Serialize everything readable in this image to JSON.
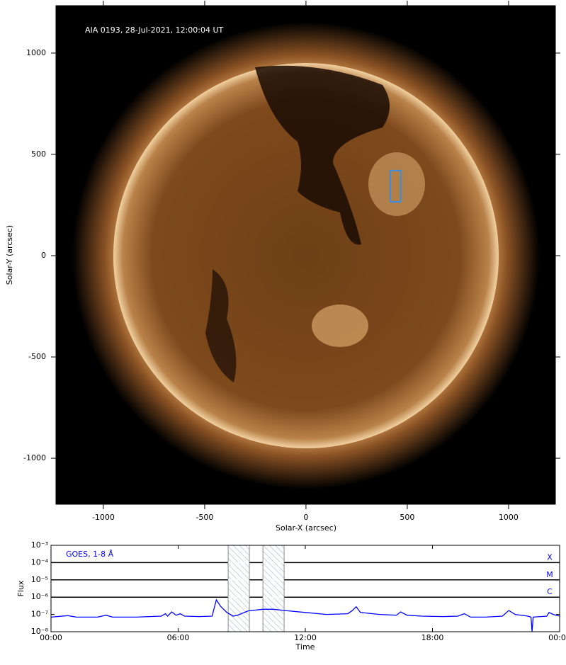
{
  "chart_data": [
    {
      "type": "image",
      "annotation": "AIA 0193, 28-Jul-2021, 12:00:04 UT",
      "xlabel": "Solar-X (arcsec)",
      "ylabel": "Solar-Y (arcsec)",
      "xlim": [
        -1234,
        1231
      ],
      "ylim": [
        -1227,
        1234
      ],
      "xticks": [
        -1000,
        -500,
        0,
        500,
        1000
      ],
      "yticks": [
        1000,
        500,
        0,
        -500,
        -1000
      ],
      "box": {
        "x": [
          416,
          468
        ],
        "y": [
          266,
          420
        ],
        "color": "#3a8ee0"
      }
    },
    {
      "type": "line",
      "xlabel": "Time",
      "ylabel": "Flux",
      "xlim": [
        0,
        24
      ],
      "ylim": [
        1e-08,
        0.001
      ],
      "ylog": true,
      "xticks": [
        {
          "value": 0,
          "label": "00:00"
        },
        {
          "value": 6,
          "label": "06:00"
        },
        {
          "value": 12,
          "label": "12:00"
        },
        {
          "value": 18,
          "label": "18:00"
        },
        {
          "value": 24,
          "label": "00:00"
        }
      ],
      "yticks": [
        {
          "value": 1e-08,
          "label": "10⁻⁸"
        },
        {
          "value": 1e-07,
          "label": "10⁻⁷"
        },
        {
          "value": 1e-06,
          "label": "10⁻⁶"
        },
        {
          "value": 1e-05,
          "label": "10⁻⁵"
        },
        {
          "value": 0.0001,
          "label": "10⁻⁴"
        },
        {
          "value": 0.001,
          "label": "10⁻³"
        }
      ],
      "flare_classes": [
        {
          "label": "X",
          "value": 0.0001
        },
        {
          "label": "M",
          "value": 1e-05
        },
        {
          "label": "C",
          "value": 1e-06
        }
      ],
      "shaded_spans": [
        [
          8.36,
          9.36
        ],
        [
          10.0,
          11.0
        ]
      ],
      "x": [
        0,
        0.8,
        1.2,
        2.2,
        2.6,
        2.9,
        4,
        5.2,
        5.4,
        5.5,
        5.7,
        5.9,
        6.1,
        6.3,
        7.0,
        7.6,
        7.8,
        8.0,
        8.3,
        8.6,
        8.8,
        9.3,
        10,
        10.5,
        11,
        12,
        13,
        14,
        14.2,
        14.4,
        14.6,
        15.5,
        16.3,
        16.5,
        16.8,
        17.5,
        18.5,
        19.2,
        19.5,
        19.8,
        20.5,
        21.3,
        21.6,
        21.9,
        22.5,
        22.65,
        22.7,
        22.75,
        23.4,
        23.5,
        23.7,
        24
      ],
      "series": [
        {
          "name": "GOES, 1-8 Å",
          "color": "#0000ff",
          "values": [
            7e-08,
            8.5e-08,
            7e-08,
            7e-08,
            9e-08,
            7e-08,
            7e-08,
            8e-08,
            1.1e-07,
            8e-08,
            1.4e-07,
            9e-08,
            1.1e-07,
            8e-08,
            7.5e-08,
            8e-08,
            7e-07,
            3e-07,
            1.3e-07,
            8e-08,
            9e-08,
            1.6e-07,
            2e-07,
            2e-07,
            1.7e-07,
            1.3e-07,
            1e-07,
            1.1e-07,
            1.6e-07,
            2.8e-07,
            1.3e-07,
            1e-07,
            9e-08,
            1.4e-07,
            9e-08,
            8e-08,
            7.5e-08,
            8e-08,
            1.1e-07,
            7e-08,
            7e-08,
            8e-08,
            1.7e-07,
            1e-07,
            8e-08,
            7e-08,
            1e-08,
            7e-08,
            8e-08,
            1.3e-07,
            1e-07,
            8e-08
          ]
        }
      ]
    }
  ]
}
